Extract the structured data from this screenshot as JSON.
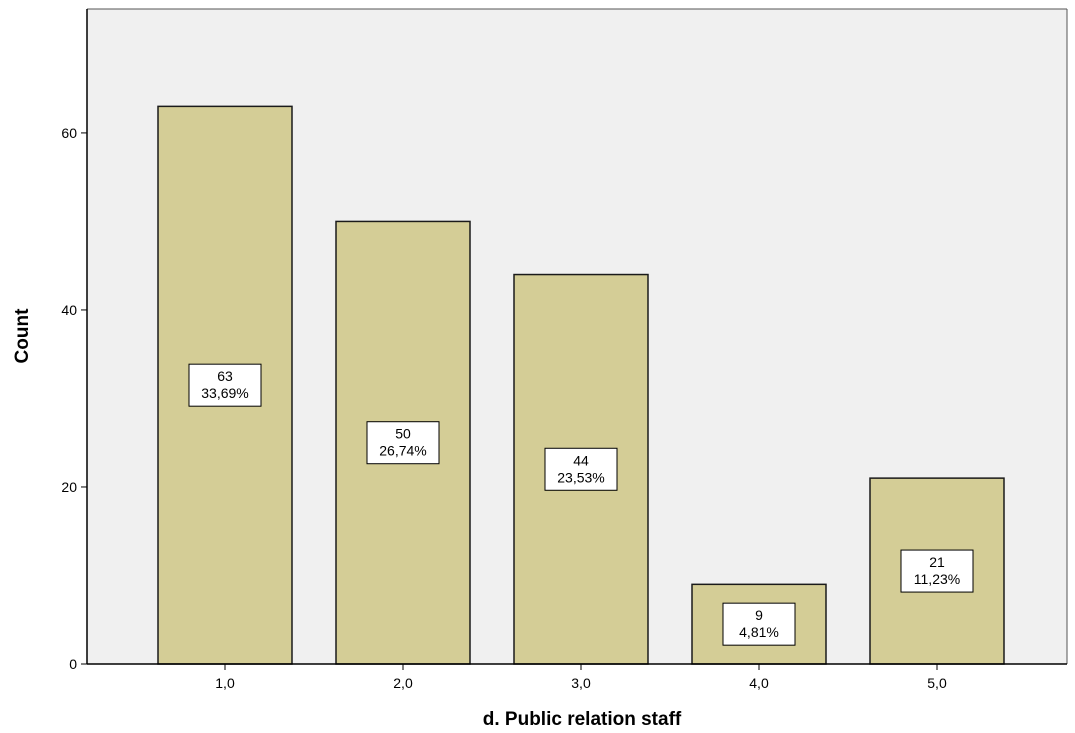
{
  "chart_data": {
    "type": "bar",
    "categories": [
      "1,0",
      "2,0",
      "3,0",
      "4,0",
      "5,0"
    ],
    "values": [
      63,
      50,
      44,
      9,
      21
    ],
    "percent_labels": [
      "33,69%",
      "26,74%",
      "23,53%",
      "4,81%",
      "11,23%"
    ],
    "value_labels": [
      "63",
      "50",
      "44",
      "9",
      "21"
    ],
    "y_ticks": [
      0,
      20,
      40,
      60
    ],
    "y_tick_labels": [
      "0",
      "20",
      "40",
      "60"
    ],
    "ylim": [
      0,
      74
    ],
    "xlabel": "d. Public relation staff",
    "ylabel": "Count",
    "grid": false,
    "colors": {
      "bar_fill": "#D4CD96",
      "bar_stroke": "#1a1a1a",
      "plot_background": "#F0F0F0",
      "label_box_fill": "#FFFFFF"
    }
  }
}
